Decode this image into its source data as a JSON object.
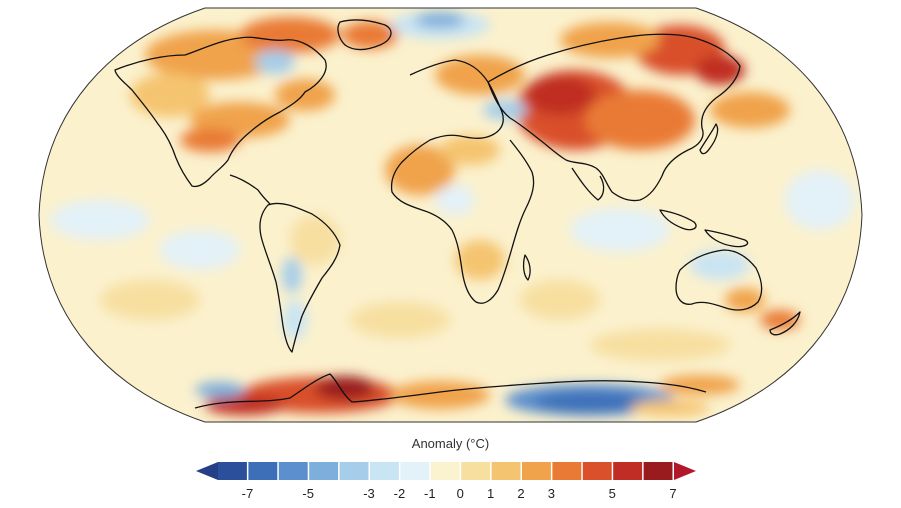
{
  "legend": {
    "title": "Anomaly (°C)",
    "ticks": [
      "-7",
      "-5",
      "-3",
      "-2",
      "-1",
      "0",
      "1",
      "2",
      "3",
      "5",
      "7"
    ],
    "bin_colors": [
      "#2c4f9b",
      "#3c6fb8",
      "#5b8fcd",
      "#7eaedb",
      "#a6cde9",
      "#c9e4f3",
      "#e3f1f8",
      "#fbf3cf",
      "#f7dfa0",
      "#f5c470",
      "#f0a34b",
      "#e97a36",
      "#d9502b",
      "#c02d24",
      "#9a1b1d"
    ],
    "arrow_colors": {
      "low": "#243f86",
      "high": "#b2182b"
    }
  },
  "palette": {
    "ocean_base": "#fbf1cd",
    "warm": [
      "#f7dfa0",
      "#f5c470",
      "#f0a34b",
      "#e97a36",
      "#d9502b",
      "#c02d24"
    ],
    "cool": [
      "#e3f1f8",
      "#c9e4f3",
      "#a6cde9",
      "#7eaedb",
      "#3c6fb8"
    ],
    "coastline": "#111111"
  }
}
